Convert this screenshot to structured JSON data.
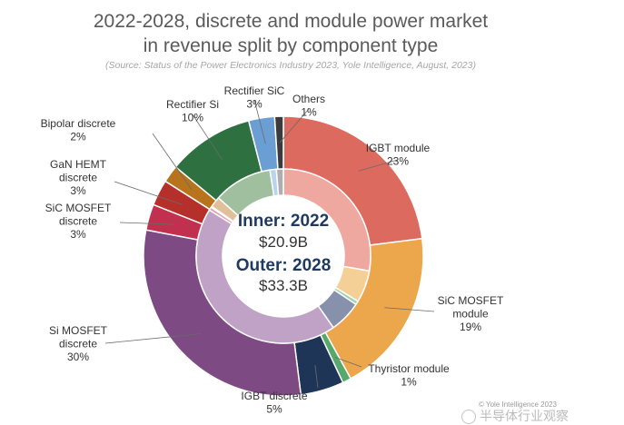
{
  "header": {
    "title_line1": "2022-2028, discrete and module power market",
    "title_line2": "in revenue split by component type",
    "source": "(Source: Status of the Power Electronics Industry 2023, Yole Intelligence, August, 2023)"
  },
  "center": {
    "inner_label": "Inner: 2022",
    "inner_value": "$20.9B",
    "outer_label": "Outer: 2028",
    "outer_value": "$33.3B"
  },
  "footer": {
    "copyright": "© Yole Intelligence 2023",
    "watermark": "半导体行业观察"
  },
  "chart_data": {
    "type": "pie",
    "title": "2022-2028, discrete and module power market in revenue split by component type",
    "categories": [
      "IGBT module",
      "SiC MOSFET module",
      "Thyristor module",
      "IGBT discrete",
      "Si MOSFET discrete",
      "SiC MOSFET discrete",
      "GaN HEMT discrete",
      "Bipolar discrete",
      "Rectifier Si",
      "Rectifier SiC",
      "Others"
    ],
    "series": [
      {
        "name": "Outer: 2028",
        "values": [
          23,
          19,
          1,
          5,
          30,
          3,
          3,
          2,
          10,
          3,
          1
        ],
        "labels": [
          "23%",
          "19%",
          "1%",
          "5%",
          "30%",
          "3%",
          "3%",
          "2%",
          "10%",
          "3%",
          "1%"
        ],
        "colors": [
          "#dd6a5e",
          "#eca64b",
          "#56a96b",
          "#1f3557",
          "#7d4a83",
          "#c2304f",
          "#b6302b",
          "#b7741d",
          "#2e7040",
          "#6b9fd4",
          "#3b3b3b"
        ]
      },
      {
        "name": "Inner: 2022",
        "values": [
          28,
          6,
          0.7,
          6,
          44,
          0.6,
          0.2,
          2,
          11,
          1.2,
          1.3
        ],
        "colors": [
          "#eea8a0",
          "#f4cf96",
          "#9fd3ad",
          "#8791ab",
          "#bfa2c5",
          "#e59db0",
          "#e5a19d",
          "#e0c09a",
          "#9fbf9f",
          "#bcd3ec",
          "#aeaeae"
        ]
      }
    ]
  }
}
